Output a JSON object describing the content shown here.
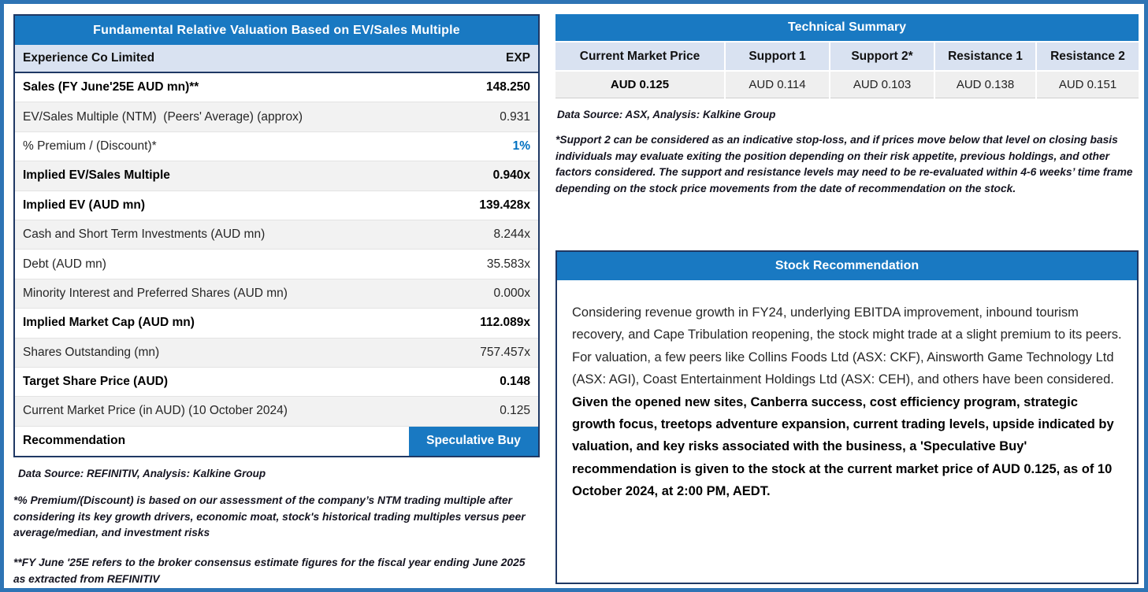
{
  "colors": {
    "header_blue": "#1979C2",
    "accent_blue": "#0070C0",
    "subheader_bg": "#D9E2F1",
    "row_alt_bg": "#F2F2F2",
    "cell_bg": "#EFEFEF",
    "border_navy": "#1F3864",
    "page_border": "#2E74B5"
  },
  "valuation": {
    "title": "Fundamental Relative Valuation Based on EV/Sales Multiple",
    "company": "Experience Co Limited",
    "ticker": "EXP",
    "rows": [
      {
        "label": "Sales (FY June'25E AUD mn)**",
        "value": "148.250",
        "bold": true
      },
      {
        "label": "EV/Sales Multiple (NTM)  (Peers' Average) (approx)",
        "value": "0.931"
      },
      {
        "label": "% Premium / (Discount)*",
        "value": "1%",
        "accent": true
      },
      {
        "label": "Implied EV/Sales Multiple",
        "value": "0.940x",
        "bold": true
      },
      {
        "label": "Implied EV (AUD mn)",
        "value": "139.428x",
        "bold": true
      },
      {
        "label": "Cash and Short Term Investments (AUD mn)",
        "value": "8.244x"
      },
      {
        "label": "Debt (AUD mn)",
        "value": "35.583x"
      },
      {
        "label": "Minority Interest and Preferred Shares (AUD mn)",
        "value": "0.000x"
      },
      {
        "label": "Implied Market Cap (AUD mn)",
        "value": "112.089x",
        "bold": true
      },
      {
        "label": "Shares Outstanding (mn)",
        "value": "757.457x"
      },
      {
        "label": "Target Share Price (AUD)",
        "value": "0.148",
        "bold": true
      },
      {
        "label": "Current Market Price (in AUD) (10 October 2024)",
        "value": "0.125"
      },
      {
        "label": "Recommendation",
        "value": "Speculative Buy",
        "bold": true,
        "highlight": true
      }
    ],
    "source": "Data Source: REFINITIV, Analysis: Kalkine Group",
    "footnote1": "*% Premium/(Discount) is based on our assessment of the company’s NTM trading multiple after considering its key growth drivers, economic moat, stock's historical trading multiples versus peer average/median, and investment risks",
    "footnote2": "**FY June '25E refers to the broker consensus estimate figures for the fiscal year ending June 2025  as extracted from REFINITIV"
  },
  "technical": {
    "title": "Technical Summary",
    "columns": [
      "Current Market Price",
      "Support 1",
      "Support 2*",
      "Resistance 1",
      "Resistance 2"
    ],
    "values": [
      "AUD 0.125",
      "AUD 0.114",
      "AUD 0.103",
      "AUD 0.138",
      "AUD 0.151"
    ],
    "source": "Data Source: ASX, Analysis: Kalkine Group",
    "footnote": "*Support 2 can be considered as an indicative stop-loss, and if prices move below that level on closing basis individuals may evaluate exiting the position depending on their risk appetite, previous holdings, and other factors considered. The support and resistance levels may need to be re-evaluated within 4-6 weeks’ time frame depending on the stock price movements from the date of recommendation on the stock."
  },
  "recommendation": {
    "title": "Stock Recommendation",
    "text_normal": "Considering revenue growth in FY24, underlying EBITDA improvement, inbound tourism recovery, and Cape Tribulation reopening, the stock might trade at a slight premium to its peers. For valuation, a few peers like Collins Foods Ltd (ASX: CKF), Ainsworth Game Technology Ltd (ASX: AGI), Coast Entertainment Holdings Ltd (ASX: CEH), and others have been considered. ",
    "text_bold": "Given the opened new sites, Canberra success, cost efficiency program, strategic growth focus, treetops adventure expansion, current trading levels, upside indicated by valuation, and key risks associated with the business, a 'Speculative Buy' recommendation is given to the stock at the current market price of AUD 0.125, as of 10 October 2024, at 2:00 PM, AEDT."
  }
}
